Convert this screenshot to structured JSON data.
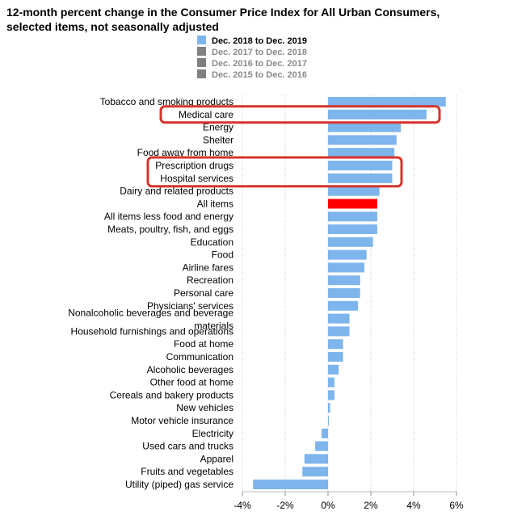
{
  "chart_data": {
    "type": "bar",
    "orientation": "horizontal",
    "title": "12-month percent change in the Consumer Price Index for All Urban Consumers, selected items, not seasonally adjusted",
    "legend": [
      {
        "label": "Dec. 2018 to Dec. 2019",
        "color": "#7db5ec",
        "active": true
      },
      {
        "label": "Dec. 2017 to Dec. 2018",
        "color": "#808080",
        "active": false
      },
      {
        "label": "Dec. 2016 to Dec. 2017",
        "color": "#808080",
        "active": false
      },
      {
        "label": "Dec. 2015 to Dec. 2016",
        "color": "#808080",
        "active": false
      }
    ],
    "categories": [
      "Tobacco and smoking products",
      "Medical care",
      "Energy",
      "Shelter",
      "Food away from home",
      "Prescription drugs",
      "Hospital services",
      "Dairy and related products",
      "All items",
      "All items less food and energy",
      "Meats, poultry, fish, and eggs",
      "Education",
      "Food",
      "Airline fares",
      "Recreation",
      "Personal care",
      "Physicians' services",
      "Nonalcoholic beverages and beverage materials",
      "Household furnishings and operations",
      "Food at home",
      "Communication",
      "Alcoholic beverages",
      "Other food at home",
      "Cereals and bakery products",
      "New vehicles",
      "Motor vehicle insurance",
      "Electricity",
      "Used cars and trucks",
      "Apparel",
      "Fruits and vegetables",
      "Utility (piped) gas service"
    ],
    "values": [
      5.5,
      4.6,
      3.4,
      3.2,
      3.1,
      3.0,
      3.0,
      2.4,
      2.3,
      2.3,
      2.3,
      2.1,
      1.8,
      1.7,
      1.5,
      1.5,
      1.4,
      1.0,
      1.0,
      0.7,
      0.7,
      0.5,
      0.3,
      0.3,
      0.1,
      0.0,
      -0.3,
      -0.6,
      -1.1,
      -1.2,
      -3.5
    ],
    "highlight_category": "All items",
    "highlight_color": "#ff0000",
    "bar_color": "#7db5ec",
    "x_ticks": [
      "-4%",
      "-2%",
      "0%",
      "2%",
      "4%",
      "6%"
    ],
    "xlim": [
      -4,
      6
    ],
    "grid": true,
    "annotations": [
      {
        "type": "box",
        "color": "#d6342c",
        "categories": [
          "Medical care"
        ]
      },
      {
        "type": "box",
        "color": "#d6342c",
        "categories": [
          "Prescription drugs",
          "Hospital services"
        ]
      }
    ]
  }
}
